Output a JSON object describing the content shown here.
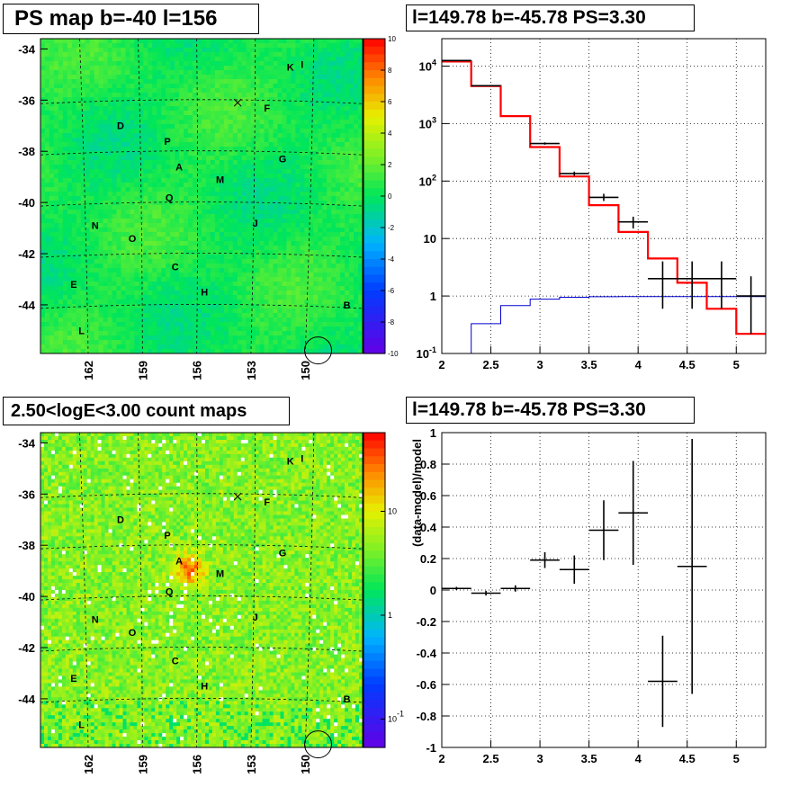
{
  "titles": {
    "ps_map": "PS map b=-40 l=156",
    "spectrum": "l=149.78 b=-45.78 PS=3.30",
    "count_map": "2.50<logE<3.00 count maps",
    "residual": "l=149.78 b=-45.78 PS=3.30"
  },
  "colors": {
    "data": "#000000",
    "model_total": "#ff0000",
    "model_background": "#0000cc",
    "grid": "#000000"
  },
  "chart_data": [
    {
      "type": "heatmap",
      "name": "ps_map",
      "title": "PS map b=-40 l=156",
      "xlabel": "",
      "ylabel": "",
      "x_ticks": [
        "162",
        "159",
        "156",
        "153",
        "150"
      ],
      "y_ticks": [
        "-34",
        "-36",
        "-38",
        "-40",
        "-42",
        "-44"
      ],
      "colorbar_ticks": [
        "10",
        "8",
        "6",
        "4",
        "2",
        "0",
        "-2",
        "-4",
        "-6",
        "-8",
        "-10"
      ],
      "zlim": [
        -10,
        10
      ],
      "z_scale": "linear",
      "sources": [
        {
          "label": "K",
          "l": 151.2,
          "b": -34.7
        },
        {
          "label": "I",
          "l": 150.6,
          "b": -34.6
        },
        {
          "label": "F",
          "l": 152.4,
          "b": -36.3
        },
        {
          "label": "D",
          "l": 159.9,
          "b": -37.0
        },
        {
          "label": "P",
          "l": 157.5,
          "b": -37.6
        },
        {
          "label": "G",
          "l": 151.6,
          "b": -38.3
        },
        {
          "label": "A",
          "l": 156.9,
          "b": -38.6
        },
        {
          "label": "M",
          "l": 154.8,
          "b": -39.1
        },
        {
          "label": "Q",
          "l": 157.4,
          "b": -39.8
        },
        {
          "label": "J",
          "l": 153.0,
          "b": -40.8
        },
        {
          "label": "N",
          "l": 161.2,
          "b": -40.9
        },
        {
          "label": "O",
          "l": 159.3,
          "b": -41.4
        },
        {
          "label": "C",
          "l": 157.1,
          "b": -42.5
        },
        {
          "label": "E",
          "l": 162.3,
          "b": -43.2
        },
        {
          "label": "H",
          "l": 155.6,
          "b": -43.5
        },
        {
          "label": "B",
          "l": 148.3,
          "b": -44.0
        },
        {
          "label": "L",
          "l": 161.9,
          "b": -45.0
        }
      ],
      "cross_marker": {
        "l": 153.9,
        "b": -36.1
      },
      "circle_marker": {
        "l": 149.78,
        "b": -45.78
      }
    },
    {
      "type": "line",
      "name": "spectrum",
      "title": "l=149.78 b=-45.78 PS=3.30",
      "xlabel": "",
      "ylabel": "",
      "xlim": [
        2,
        5.3
      ],
      "ylim": [
        0.1,
        30000
      ],
      "y_scale": "log",
      "x_ticks": [
        "2",
        "2.5",
        "3",
        "3.5",
        "4",
        "4.5",
        "5"
      ],
      "y_ticks": [
        "10^4",
        "10^3",
        "10^2",
        "10",
        "1",
        "10^-1"
      ],
      "bin_edges": [
        2.0,
        2.3,
        2.6,
        2.9,
        3.2,
        3.5,
        3.8,
        4.1,
        4.4,
        4.7,
        5.0,
        5.3
      ],
      "series": [
        {
          "role": "model_total",
          "values": [
            12000,
            4500,
            1350,
            390,
            120,
            38,
            13,
            4.5,
            1.7,
            0.6,
            0.22
          ]
        },
        {
          "role": "model_background",
          "values": [
            0.09,
            0.33,
            0.68,
            0.88,
            0.95,
            0.97,
            0.98,
            0.98,
            0.98,
            0.98,
            0.98
          ]
        },
        {
          "role": "data",
          "points": [
            {
              "x": 2.15,
              "y": 12500,
              "lo": 12300,
              "hi": 12700
            },
            {
              "x": 2.45,
              "y": 4550,
              "lo": 4480,
              "hi": 4620
            },
            {
              "x": 3.05,
              "y": 450,
              "lo": 430,
              "hi": 470
            },
            {
              "x": 3.35,
              "y": 135,
              "lo": 124,
              "hi": 146
            },
            {
              "x": 3.65,
              "y": 52,
              "lo": 45,
              "hi": 60
            },
            {
              "x": 3.95,
              "y": 19.5,
              "lo": 15,
              "hi": 24
            },
            {
              "x": 4.25,
              "y": 2.0,
              "lo": 0.6,
              "hi": 4.0
            },
            {
              "x": 4.55,
              "y": 2.0,
              "lo": 0.6,
              "hi": 4.0
            },
            {
              "x": 4.85,
              "y": 2.0,
              "lo": 0.6,
              "hi": 4.0
            },
            {
              "x": 5.15,
              "y": 1.0,
              "lo": 0.22,
              "hi": 2.2
            }
          ]
        }
      ]
    },
    {
      "type": "heatmap",
      "name": "count_map",
      "title": "2.50<logE<3.00 count maps",
      "xlabel": "",
      "ylabel": "",
      "x_ticks": [
        "162",
        "159",
        "156",
        "153",
        "150"
      ],
      "y_ticks": [
        "-34",
        "-36",
        "-38",
        "-40",
        "-42",
        "-44"
      ],
      "colorbar_ticks": [
        "10",
        "1",
        "10^-1"
      ],
      "z_scale": "log",
      "sources_same_as": "ps_map"
    },
    {
      "type": "scatter",
      "name": "residual",
      "title": "l=149.78 b=-45.78 PS=3.30",
      "xlabel": "",
      "ylabel": "(data-model)/model",
      "xlim": [
        2,
        5.3
      ],
      "ylim": [
        -1,
        1
      ],
      "x_ticks": [
        "2",
        "2.5",
        "3",
        "3.5",
        "4",
        "4.5",
        "5"
      ],
      "y_ticks": [
        "1",
        "0.8",
        "0.6",
        "0.4",
        "0.2",
        "0",
        "-0.2",
        "-0.4",
        "-0.6",
        "-0.8",
        "-1"
      ],
      "points": [
        {
          "x": 2.15,
          "y": 0.01,
          "lo": 0.0,
          "hi": 0.02
        },
        {
          "x": 2.45,
          "y": -0.02,
          "lo": -0.035,
          "hi": -0.005
        },
        {
          "x": 2.75,
          "y": 0.01,
          "lo": -0.01,
          "hi": 0.03
        },
        {
          "x": 3.05,
          "y": 0.19,
          "lo": 0.14,
          "hi": 0.24
        },
        {
          "x": 3.35,
          "y": 0.13,
          "lo": 0.04,
          "hi": 0.22
        },
        {
          "x": 3.65,
          "y": 0.38,
          "lo": 0.19,
          "hi": 0.57
        },
        {
          "x": 3.95,
          "y": 0.49,
          "lo": 0.16,
          "hi": 0.82
        },
        {
          "x": 4.25,
          "y": -0.58,
          "lo": -0.87,
          "hi": -0.29
        },
        {
          "x": 4.55,
          "y": 0.15,
          "lo": -0.66,
          "hi": 0.96
        }
      ]
    }
  ]
}
